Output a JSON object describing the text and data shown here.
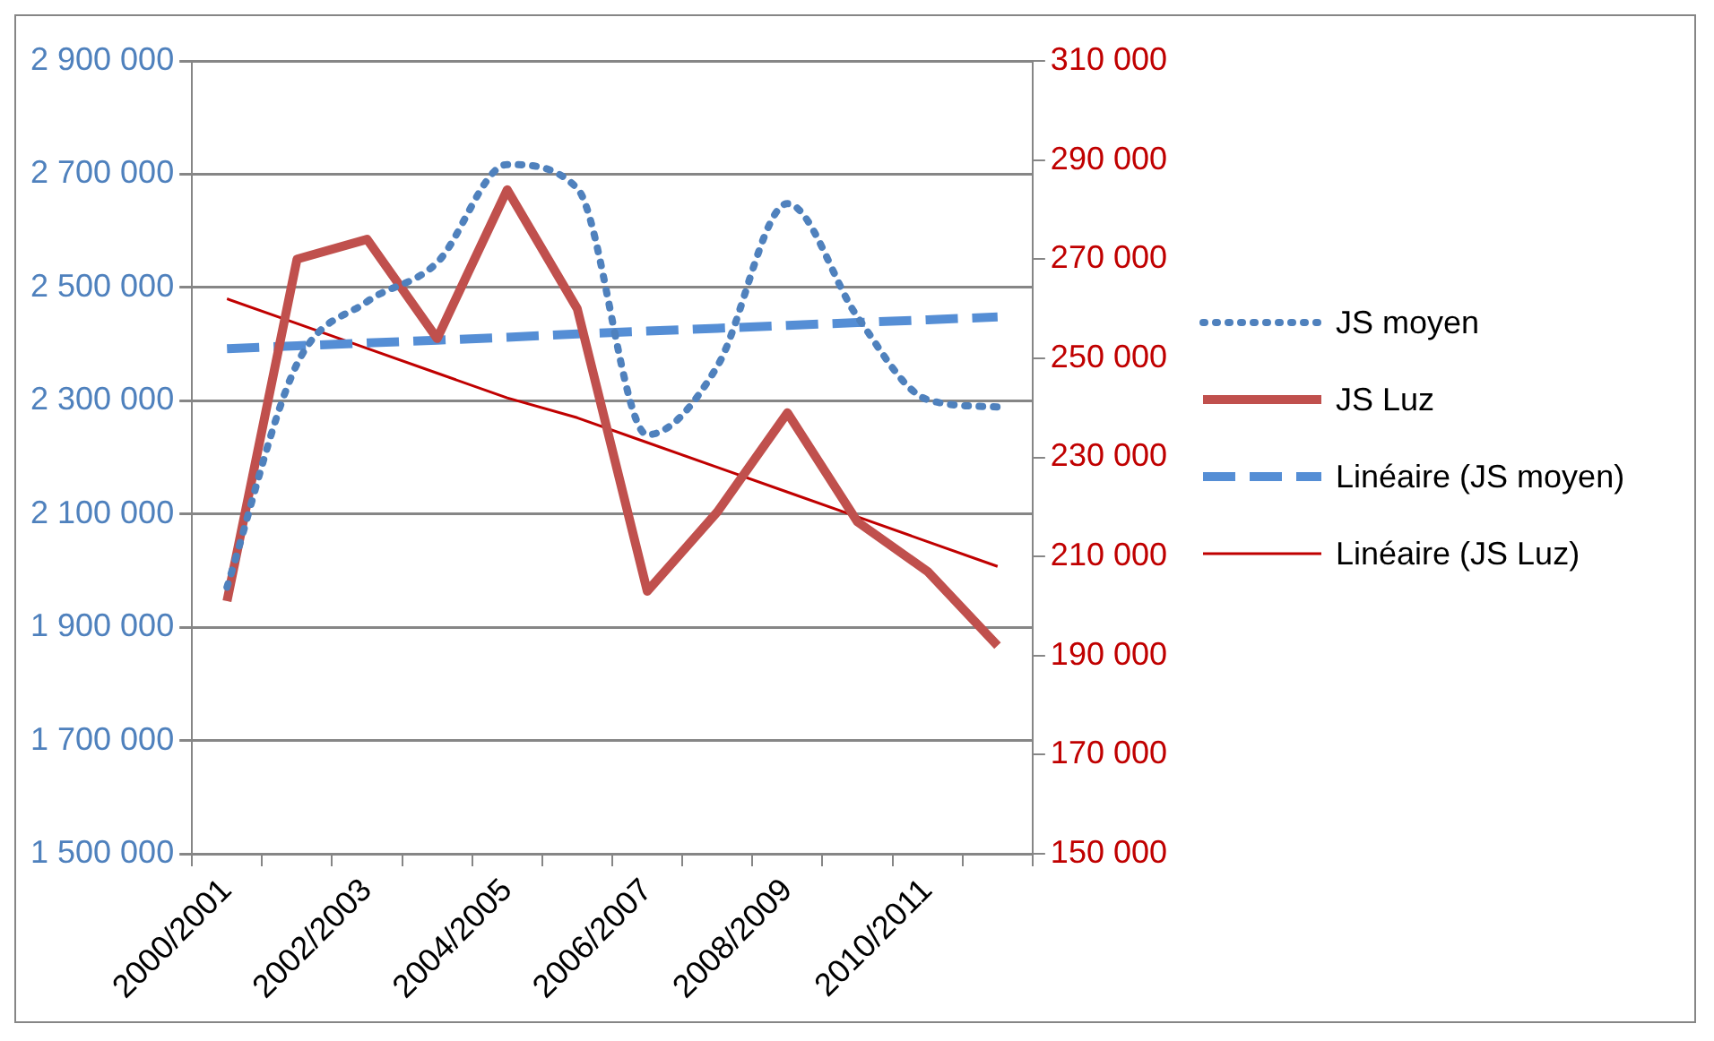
{
  "chart_data": {
    "type": "line",
    "categories": [
      "2000/2001",
      null,
      "2002/2003",
      null,
      "2004/2005",
      null,
      "2006/2007",
      null,
      "2008/2009",
      null,
      "2010/2011",
      null
    ],
    "series": [
      {
        "name": "JS moyen",
        "color": "#4f81bd",
        "line_style": "dotted",
        "values": [
          1971000,
          2365000,
          2475000,
          2544000,
          2717000,
          2675000,
          2240000,
          2361000,
          2648000,
          2448000,
          2302000,
          2289000
        ]
      },
      {
        "name": "JS Luz",
        "color": "#c0504d",
        "line_style": "solid",
        "axis": "y2",
        "values": [
          201000,
          270000,
          274000,
          254000,
          284000,
          260000,
          203000,
          219000,
          239000,
          217000,
          207000,
          192000
        ]
      },
      {
        "name": "Linéaire (JS moyen)",
        "color": "#558ed5",
        "line_style": "dashed",
        "values": [
          2392000,
          2397000,
          2402000,
          2407000,
          2412000,
          2418000,
          2423000,
          2428000,
          2433000,
          2438000,
          2443000,
          2448000
        ]
      },
      {
        "name": "Linéaire (JS Luz)",
        "color": "#c00000",
        "line_style": "solid",
        "axis": "y2",
        "values": [
          262000,
          257000,
          252000,
          247000,
          242000,
          238000,
          233000,
          228000,
          223000,
          218000,
          213000,
          208000
        ]
      }
    ],
    "ylim": [
      1500000,
      2900000
    ],
    "yticks": [
      {
        "value": 1500000,
        "label": "1 500 000"
      },
      {
        "value": 1700000,
        "label": "1 700 000"
      },
      {
        "value": 1900000,
        "label": "1 900 000"
      },
      {
        "value": 2100000,
        "label": "2 100 000"
      },
      {
        "value": 2300000,
        "label": "2 300 000"
      },
      {
        "value": 2500000,
        "label": "2 500 000"
      },
      {
        "value": 2700000,
        "label": "2 700 000"
      },
      {
        "value": 2900000,
        "label": "2 900 000"
      }
    ],
    "y2lim": [
      150000,
      310000
    ],
    "y2ticks": [
      {
        "value": 150000,
        "label": "150 000"
      },
      {
        "value": 170000,
        "label": "170 000"
      },
      {
        "value": 190000,
        "label": "190 000"
      },
      {
        "value": 210000,
        "label": "210 000"
      },
      {
        "value": 230000,
        "label": "230 000"
      },
      {
        "value": 250000,
        "label": "250 000"
      },
      {
        "value": 270000,
        "label": "270 000"
      },
      {
        "value": 290000,
        "label": "290 000"
      },
      {
        "value": 310000,
        "label": "310 000"
      }
    ],
    "grid": "y",
    "legend": "right",
    "marker": "none"
  }
}
